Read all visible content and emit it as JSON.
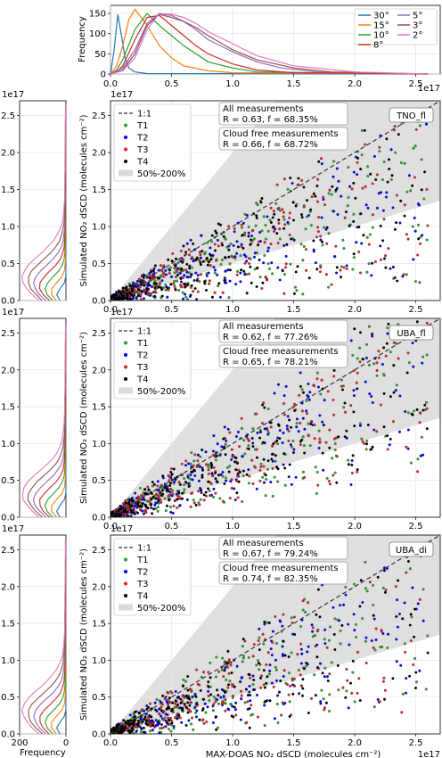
{
  "chart_data": [
    {
      "id": "top-histogram",
      "type": "line",
      "xlabel": "",
      "ylabel": "Frequency",
      "xlim": [
        0,
        2.7
      ],
      "ylim": [
        0,
        170
      ],
      "x_multiplier": "1e17",
      "xticks": [
        "0.0",
        "0.5",
        "1.0",
        "1.5",
        "2.0",
        "2.5"
      ],
      "yticks": [
        "0",
        "50",
        "100",
        "150"
      ],
      "grid": true,
      "legend_position": "top-right",
      "series": [
        {
          "name": "30°",
          "color": "#1f77b4",
          "x": [
            0,
            0.03,
            0.06,
            0.09,
            0.12,
            0.15,
            0.2,
            0.3,
            2.6
          ],
          "y": [
            0,
            60,
            148,
            95,
            40,
            15,
            5,
            1,
            0
          ]
        },
        {
          "name": "15°",
          "color": "#ff7f0e",
          "x": [
            0,
            0.05,
            0.1,
            0.15,
            0.2,
            0.3,
            0.4,
            0.5,
            0.6,
            0.8,
            1.0,
            2.6
          ],
          "y": [
            0,
            20,
            70,
            135,
            160,
            120,
            70,
            40,
            20,
            8,
            3,
            0
          ]
        },
        {
          "name": "10°",
          "color": "#2ca02c",
          "x": [
            0,
            0.05,
            0.1,
            0.2,
            0.3,
            0.4,
            0.5,
            0.6,
            0.7,
            0.8,
            1.0,
            1.2,
            2.6
          ],
          "y": [
            0,
            10,
            35,
            110,
            150,
            120,
            95,
            70,
            50,
            30,
            15,
            5,
            0
          ]
        },
        {
          "name": "8°",
          "color": "#d62728",
          "x": [
            0,
            0.05,
            0.1,
            0.2,
            0.3,
            0.4,
            0.5,
            0.6,
            0.7,
            0.8,
            1.0,
            1.2,
            1.5,
            2.6
          ],
          "y": [
            0,
            5,
            20,
            85,
            140,
            145,
            120,
            95,
            70,
            50,
            25,
            10,
            3,
            0
          ]
        },
        {
          "name": "5°",
          "color": "#9467bd",
          "x": [
            0,
            0.1,
            0.2,
            0.3,
            0.4,
            0.5,
            0.6,
            0.7,
            0.8,
            1.0,
            1.2,
            1.4,
            1.7,
            2.6
          ],
          "y": [
            0,
            15,
            60,
            125,
            150,
            145,
            130,
            110,
            85,
            55,
            30,
            15,
            5,
            0
          ]
        },
        {
          "name": "3°",
          "color": "#8c564b",
          "x": [
            0,
            0.1,
            0.2,
            0.3,
            0.4,
            0.5,
            0.6,
            0.7,
            0.8,
            1.0,
            1.2,
            1.5,
            1.8,
            2.6
          ],
          "y": [
            0,
            10,
            50,
            120,
            148,
            140,
            130,
            115,
            95,
            60,
            35,
            15,
            5,
            0
          ]
        },
        {
          "name": "2°",
          "color": "#e377c2",
          "x": [
            0,
            0.1,
            0.2,
            0.3,
            0.4,
            0.5,
            0.6,
            0.7,
            0.8,
            1.0,
            1.2,
            1.5,
            2.0,
            2.6
          ],
          "y": [
            0,
            8,
            40,
            110,
            150,
            148,
            140,
            125,
            105,
            75,
            45,
            20,
            5,
            0
          ]
        }
      ]
    },
    {
      "id": "panel-tno",
      "type": "scatter",
      "tag": "TNO_fl",
      "xlabel": "",
      "ylabel": "Simulated NO₂ dSCD (molecules cm⁻²)",
      "xlim": [
        0,
        2.7
      ],
      "ylim": [
        0,
        2.7
      ],
      "y_multiplier": "1e17",
      "xticks": [
        "0.0",
        "0.5",
        "1.0",
        "1.5",
        "2.0",
        "2.5"
      ],
      "yticks": [
        "0.0",
        "0.5",
        "1.0",
        "1.5",
        "2.0",
        "2.5"
      ],
      "grid": true,
      "legend_position": "top-left",
      "legend": [
        "1:1",
        "T1",
        "T2",
        "T3",
        "T4",
        "50%-200%"
      ],
      "stats": {
        "all_title": "All measurements",
        "all_value": "R = 0.63, f = 68.35%",
        "cf_title": "Cloud free measurements",
        "cf_value": "R = 0.66, f = 68.72%"
      },
      "band": {
        "upper_slope": 2.0,
        "lower_slope": 0.5
      },
      "series": [
        {
          "name": "T1",
          "color": "#2ca02c"
        },
        {
          "name": "T2",
          "color": "#0000ff"
        },
        {
          "name": "T3",
          "color": "#d62728"
        },
        {
          "name": "T4",
          "color": "#000000"
        }
      ],
      "cloud": {
        "n_per_series": 260,
        "slope": 0.55,
        "seed": 11
      }
    },
    {
      "id": "panel-uba-fl",
      "type": "scatter",
      "tag": "UBA_fl",
      "xlabel": "",
      "ylabel": "Simulated NO₂ dSCD (molecules cm⁻²)",
      "xlim": [
        0,
        2.7
      ],
      "ylim": [
        0,
        2.7
      ],
      "y_multiplier": "1e17",
      "xticks": [
        "0.0",
        "0.5",
        "1.0",
        "1.5",
        "2.0",
        "2.5"
      ],
      "yticks": [
        "0.0",
        "0.5",
        "1.0",
        "1.5",
        "2.0",
        "2.5"
      ],
      "grid": true,
      "legend_position": "top-left",
      "legend": [
        "1:1",
        "T1",
        "T2",
        "T3",
        "T4",
        "50%-200%"
      ],
      "stats": {
        "all_title": "All measurements",
        "all_value": "R = 0.62, f = 77.26%",
        "cf_title": "Cloud free measurements",
        "cf_value": "R = 0.65, f = 78.21%"
      },
      "band": {
        "upper_slope": 2.0,
        "lower_slope": 0.5
      },
      "series": [
        {
          "name": "T1",
          "color": "#2ca02c"
        },
        {
          "name": "T2",
          "color": "#0000ff"
        },
        {
          "name": "T3",
          "color": "#d62728"
        },
        {
          "name": "T4",
          "color": "#000000"
        }
      ],
      "cloud": {
        "n_per_series": 260,
        "slope": 0.7,
        "seed": 23
      }
    },
    {
      "id": "panel-uba-di",
      "type": "scatter",
      "tag": "UBA_di",
      "xlabel": "MAX-DOAS NO₂ dSCD (molecules cm⁻²)",
      "ylabel": "Simulated NO₂ dSCD (molecules cm⁻²)",
      "xlim": [
        0,
        2.7
      ],
      "ylim": [
        0,
        2.7
      ],
      "y_multiplier": "1e17",
      "x_multiplier": "1e17",
      "xticks": [
        "0.0",
        "0.5",
        "1.0",
        "1.5",
        "2.0",
        "2.5"
      ],
      "yticks": [
        "0.0",
        "0.5",
        "1.0",
        "1.5",
        "2.0",
        "2.5"
      ],
      "grid": true,
      "legend_position": "top-left",
      "legend": [
        "1:1",
        "T1",
        "T2",
        "T3",
        "T4",
        "50%-200%"
      ],
      "stats": {
        "all_title": "All measurements",
        "all_value": "R = 0.67, f = 79.24%",
        "cf_title": "Cloud free measurements",
        "cf_value": "R = 0.74, f = 82.35%"
      },
      "band": {
        "upper_slope": 2.0,
        "lower_slope": 0.5
      },
      "series": [
        {
          "name": "T1",
          "color": "#2ca02c"
        },
        {
          "name": "T2",
          "color": "#0000ff"
        },
        {
          "name": "T3",
          "color": "#d62728"
        },
        {
          "name": "T4",
          "color": "#000000"
        }
      ],
      "cloud": {
        "n_per_series": 240,
        "slope": 0.6,
        "seed": 37
      }
    },
    {
      "id": "left-histograms",
      "type": "line",
      "xlabel": "Frequency",
      "ylim": [
        0,
        2.7
      ],
      "xlim": [
        200,
        0
      ],
      "y_multiplier": "1e17",
      "xticks": [
        "200",
        "0"
      ],
      "yticks": [
        "0.0",
        "0.5",
        "1.0",
        "1.5",
        "2.0",
        "2.5"
      ],
      "grid": true,
      "orientation": "horizontal"
    }
  ]
}
